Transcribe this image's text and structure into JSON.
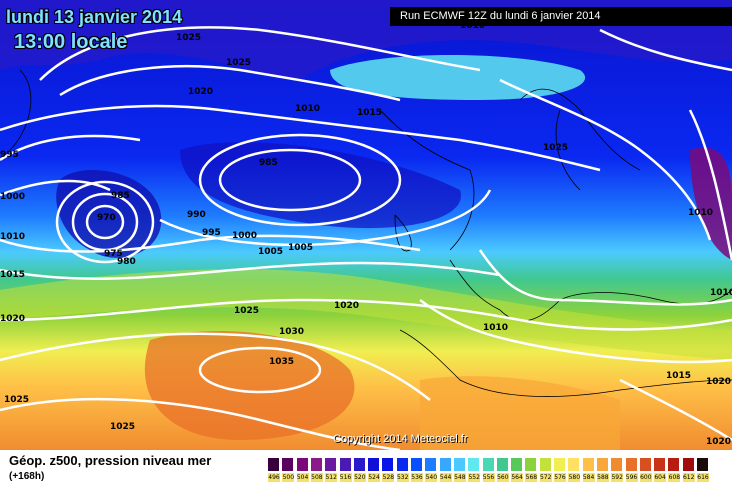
{
  "header": {
    "date": "lundi 13 janvier 2014",
    "time": "13:00 locale",
    "run": "Run ECMWF 12Z du lundi 6 janvier 2014"
  },
  "copyright": "Copyright 2014 Meteociel.fr",
  "legend": {
    "parameter": "Géop. z500, pression niveau mer",
    "lead_time": "(+168h)",
    "scale_values": [
      "496",
      "500",
      "504",
      "508",
      "512",
      "516",
      "520",
      "524",
      "528",
      "532",
      "536",
      "540",
      "544",
      "548",
      "552",
      "556",
      "560",
      "564",
      "568",
      "572",
      "576",
      "580",
      "584",
      "588",
      "592",
      "596",
      "600",
      "604",
      "608",
      "612",
      "616"
    ],
    "scale_colors": [
      "#3a003e",
      "#5a005e",
      "#7a0a7a",
      "#8a1a8a",
      "#6a1aa0",
      "#4a1ab4",
      "#2a1ac8",
      "#1010d8",
      "#0a14e6",
      "#0a28f0",
      "#0a50ff",
      "#1e7cff",
      "#38a8ff",
      "#4ccaff",
      "#60e8f0",
      "#4ad8b4",
      "#40c890",
      "#58c85a",
      "#8cd23c",
      "#c4e03a",
      "#f0ee50",
      "#ffe060",
      "#ffc048",
      "#f8a838",
      "#f08c30",
      "#e87028",
      "#d85020",
      "#c83418",
      "#b81c10",
      "#a00c0c",
      "#1a0a0a"
    ]
  },
  "isobars": [
    {
      "label": "1025"
    },
    {
      "label": "1025"
    },
    {
      "label": "1020"
    },
    {
      "label": "1010"
    },
    {
      "label": "1015"
    },
    {
      "label": "1025"
    },
    {
      "label": "995"
    },
    {
      "label": "1000"
    },
    {
      "label": "1010"
    },
    {
      "label": "1015"
    },
    {
      "label": "1020"
    },
    {
      "label": "985"
    },
    {
      "label": "970"
    },
    {
      "label": "975"
    },
    {
      "label": "980"
    },
    {
      "label": "985"
    },
    {
      "label": "990"
    },
    {
      "label": "995"
    },
    {
      "label": "1000"
    },
    {
      "label": "1005"
    },
    {
      "label": "1005"
    },
    {
      "label": "1020"
    },
    {
      "label": "1025"
    },
    {
      "label": "1030"
    },
    {
      "label": "1035"
    },
    {
      "label": "1010"
    },
    {
      "label": "1015"
    },
    {
      "label": "1020"
    },
    {
      "label": "1010"
    },
    {
      "label": "1010"
    },
    {
      "label": "1025"
    },
    {
      "label": "1025"
    },
    {
      "label": "1020"
    },
    {
      "label": "1010"
    }
  ]
}
